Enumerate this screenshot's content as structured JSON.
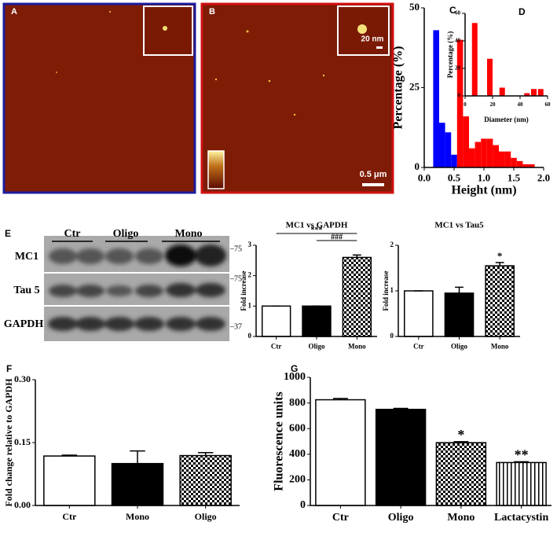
{
  "afm": {
    "panel_a": "A",
    "panel_b": "B",
    "inset_scale": "20 nm",
    "scale": "0.5 μm"
  },
  "blot": {
    "panel": "E",
    "lanes": [
      "Ctr",
      "Oligo",
      "Mono"
    ],
    "rows": [
      "MC1",
      "Tau 5",
      "GAPDH"
    ],
    "markers": [
      "–75",
      "–75",
      "–37"
    ]
  },
  "chart_data": [
    {
      "type": "histogram",
      "panel": "C",
      "xlabel": "Height (nm)",
      "ylabel": "Percentage (%)",
      "bins": [
        0.15,
        0.25,
        0.35,
        0.45,
        0.55,
        0.65,
        0.75,
        0.85,
        0.95,
        1.05,
        1.15,
        1.25,
        1.35,
        1.45,
        1.55,
        1.65,
        1.75,
        1.85,
        1.95
      ],
      "series": [
        {
          "color": "#0000ff",
          "values": [
            43,
            14,
            11,
            4,
            0,
            0,
            0,
            0,
            0,
            0,
            0,
            0,
            0,
            0,
            0,
            0,
            0,
            0
          ]
        },
        {
          "color": "#ff0000",
          "values": [
            0,
            0,
            0,
            0,
            40,
            16,
            6,
            8,
            9,
            9,
            7,
            5,
            5,
            3,
            2,
            1,
            1,
            0
          ]
        }
      ],
      "xlim": [
        0,
        2
      ],
      "xticks": [
        {
          "value": 0,
          "label": "0.0"
        },
        0.5,
        {
          "value": 1,
          "label": "1.0"
        },
        1.5,
        {
          "value": 2,
          "label": "2.0"
        }
      ],
      "ylim": [
        0,
        50
      ],
      "yticks": [
        0,
        25,
        50
      ]
    },
    {
      "type": "bar",
      "panel": "D",
      "xlabel": "Diameter (nm)",
      "ylabel": "Percentage (%)",
      "x": [
        7,
        18,
        27,
        45,
        50,
        55
      ],
      "values": [
        53,
        27,
        6,
        2,
        5,
        5
      ],
      "color": "#ff0000",
      "xlim": [
        0,
        60
      ],
      "xticks": [
        0,
        20,
        40,
        60
      ],
      "ylim": [
        0,
        60
      ],
      "yticks": [
        0,
        20,
        40,
        60
      ]
    },
    {
      "type": "bar",
      "title": "MC1 vs GAPDH",
      "ylabel": "Fold increase",
      "categories": [
        "Ctr",
        "Oligo",
        "Mono"
      ],
      "values": [
        1,
        1,
        2.6
      ],
      "errors": [
        0,
        0,
        0.08
      ],
      "fills": [
        "white",
        "black",
        "checker"
      ],
      "ylim": [
        0,
        3
      ],
      "yticks": [
        0,
        1,
        2,
        3
      ],
      "annotations": [
        {
          "text": "***",
          "from": "Ctr",
          "to": "Mono"
        },
        {
          "text": "###",
          "from": "Oligo",
          "to": "Mono"
        }
      ]
    },
    {
      "type": "bar",
      "title": "MC1 vs Tau5",
      "ylabel": "Fold increase",
      "categories": [
        "Ctr",
        "Oligo",
        "Mono"
      ],
      "values": [
        1,
        0.95,
        1.55
      ],
      "errors": [
        0,
        0.13,
        0.07
      ],
      "fills": [
        "white",
        "black",
        "checker"
      ],
      "ylim": [
        0,
        2
      ],
      "yticks": [
        0,
        1,
        2
      ],
      "annotations": [
        {
          "text": "*",
          "at": "Mono"
        }
      ]
    },
    {
      "type": "bar",
      "panel": "F",
      "ylabel": "Fold change relative to GAPDH",
      "categories": [
        "Ctr",
        "Mono",
        "Oligo"
      ],
      "values": [
        0.118,
        0.1,
        0.119
      ],
      "errors": [
        0.002,
        0.03,
        0.007
      ],
      "fills": [
        "white",
        "black",
        "checker"
      ],
      "ylim": [
        0,
        0.3
      ],
      "yticks": [
        {
          "value": 0,
          "label": "0.00"
        },
        0.15,
        {
          "value": 0.3,
          "label": "0.30"
        }
      ]
    },
    {
      "type": "bar",
      "panel": "G",
      "ylabel": "Fluorescence units",
      "categories": [
        "Ctr",
        "Oligo",
        "Mono",
        "Lactacystin"
      ],
      "values": [
        825,
        750,
        490,
        335
      ],
      "errors": [
        10,
        8,
        8,
        6
      ],
      "fills": [
        "white",
        "black",
        "checker",
        "stripes"
      ],
      "ylim": [
        0,
        1000
      ],
      "yticks": [
        0,
        200,
        400,
        600,
        800,
        1000
      ],
      "annotations": [
        {
          "text": "*",
          "at": "Mono"
        },
        {
          "text": "**",
          "at": "Lactacystin"
        }
      ]
    }
  ]
}
